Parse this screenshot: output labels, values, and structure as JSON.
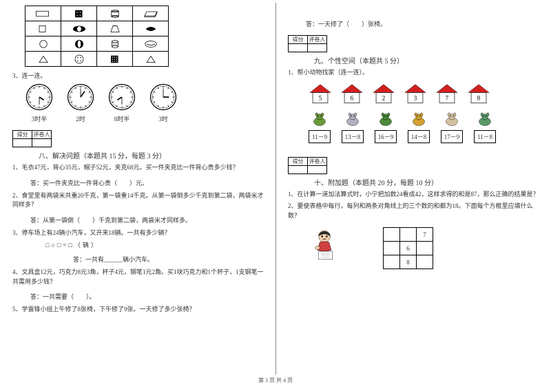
{
  "footer": "第 3 页 共 4 页",
  "left": {
    "q3_label": "3、连一连。",
    "clock_labels": [
      "3时半",
      "2时",
      "8时半",
      "3时"
    ],
    "score_header": {
      "a": "得分",
      "b": "评卷人"
    },
    "section8_title": "八、解决问题（本题共 15 分，每题 3 分）",
    "q8_1": "1、毛衣47元，背心35元，帽子52元，夹克68元。买一件夹克比一件背心贵多少钱？",
    "ans8_1": "答：买一件夹克比一件背心贵（　　）元。",
    "q8_2": "2、食堂里有两袋米共重20千克，第一袋重14千克。从第一袋倒多少千克到第二袋，两袋米才同样多？",
    "ans8_2": "答：从第一袋倒（　　）千克到第二袋，两袋米才同样多。",
    "q8_3": "3、停车场上有24辆小汽车，又开来18辆。一共有多少辆？",
    "q8_3_eq": "□○□=□（辆）",
    "ans8_3": "答：一共有______辆小汽车。",
    "q8_4": "4、文具盒12元，巧克力8元3角，杯子4元，钢笔1元2角。买1块巧克力和1个杯子，1支钢笔一共需用多少钱？",
    "ans8_4": "答：一共需要（　　）。",
    "q8_5": "5、学雷锋小组上午修了8张椅，下午修了9张。一天修了多少张椅？"
  },
  "right": {
    "ans_top": "答：一天修了（　　）张椅。",
    "score_header": {
      "a": "得分",
      "b": "评卷人"
    },
    "section9_title": "九、个性空间（本题共 5 分）",
    "q9_1": "1、帮小动物找家（连一连）。",
    "houses": [
      {
        "num": "5",
        "roof": "#d21f1f"
      },
      {
        "num": "6",
        "roof": "#d21f1f"
      },
      {
        "num": "2",
        "roof": "#d21f1f"
      },
      {
        "num": "3",
        "roof": "#d21f1f"
      },
      {
        "num": "7",
        "roof": "#d21f1f"
      },
      {
        "num": "8",
        "roof": "#d21f1f"
      }
    ],
    "animals": [
      {
        "expr": "11－9",
        "color": "#6a9a3a"
      },
      {
        "expr": "13－8",
        "color": "#b0b0c0"
      },
      {
        "expr": "16－9",
        "color": "#4a8a3a"
      },
      {
        "expr": "14－8",
        "color": "#d4a030"
      },
      {
        "expr": "17－9",
        "color": "#d4c0a0"
      },
      {
        "expr": "11－8",
        "color": "#5a9a6a"
      }
    ],
    "section10_title": "十、附加题（本题共 20 分，每题 10 分）",
    "q10_1": "1、在计算一道加法算式时，小宁把加数24看成42，这样求得的和是87，那么正确的结果是？",
    "q10_2": "2、要使表格中每行，每列和两条对角线上的三个数的和都为18。下面每个方框里应填什么数？",
    "grid": {
      "r1c3": "7",
      "r2c2": "6",
      "r3c2": "8"
    }
  }
}
